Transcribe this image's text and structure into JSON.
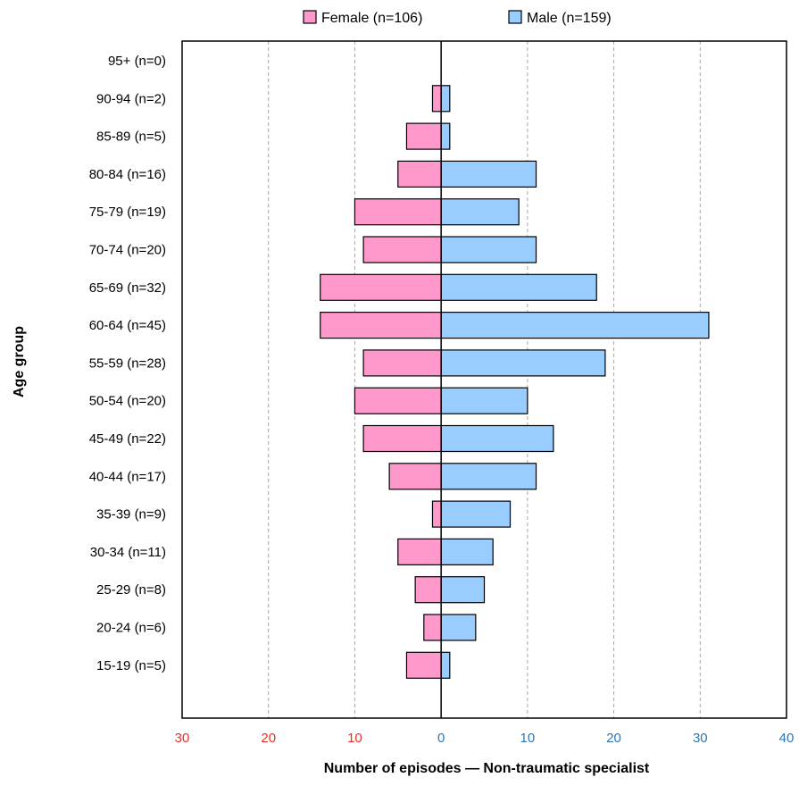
{
  "chart_data": {
    "type": "bar",
    "orientation": "horizontal",
    "xlabel": "Number of episodes — Non-traumatic specialist",
    "ylabel": "Age group",
    "xlim": [
      -30,
      40
    ],
    "x_ticks": [
      {
        "value": -30,
        "label": "30"
      },
      {
        "value": -20,
        "label": "20"
      },
      {
        "value": -10,
        "label": "10"
      },
      {
        "value": 0,
        "label": "0"
      },
      {
        "value": 10,
        "label": "10"
      },
      {
        "value": 20,
        "label": "20"
      },
      {
        "value": 30,
        "label": "30"
      },
      {
        "value": 40,
        "label": "40"
      }
    ],
    "grid": "vertical-dashed",
    "legend_position": "top",
    "categories": [
      "95+ (n=0)",
      "90-94 (n=2)",
      "85-89 (n=5)",
      "80-84 (n=16)",
      "75-79 (n=19)",
      "70-74 (n=20)",
      "65-69 (n=32)",
      "60-64 (n=45)",
      "55-59 (n=28)",
      "50-54 (n=20)",
      "45-49 (n=22)",
      "40-44 (n=17)",
      "35-39 (n=9)",
      "30-34 (n=11)",
      "25-29 (n=8)",
      "20-24 (n=6)",
      "15-19 (n=5)"
    ],
    "series": [
      {
        "name": "Female (n=106)",
        "color": "#ff99cc",
        "tick_color": "#e8302a",
        "values": [
          0,
          1,
          4,
          5,
          10,
          9,
          14,
          14,
          9,
          10,
          9,
          6,
          1,
          5,
          3,
          2,
          4
        ]
      },
      {
        "name": "Male (n=159)",
        "color": "#99ccff",
        "tick_color": "#2e75b6",
        "values": [
          0,
          1,
          1,
          11,
          9,
          11,
          18,
          31,
          19,
          10,
          13,
          11,
          8,
          6,
          5,
          4,
          1
        ]
      }
    ]
  }
}
